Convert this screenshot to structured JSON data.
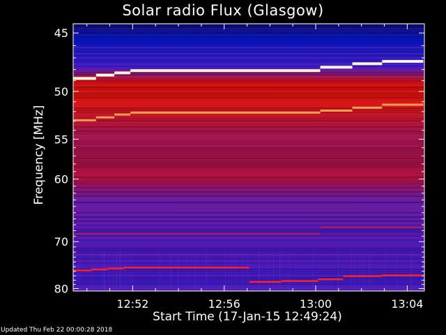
{
  "updated_text": "Updated Thu Feb 22 00:00:28 2018",
  "chart_data": {
    "type": "heatmap",
    "title": "Solar radio Flux (Glasgow)",
    "xlabel": "Start Time (17-Jan-15 12:49:24)",
    "ylabel": "Frequency [MHz]",
    "x_axis": {
      "unit": "time (HH:MM)",
      "start": "12:49:24",
      "end": "13:04:40",
      "tick_labels": [
        "12:52",
        "12:56",
        "13:00",
        "13:04"
      ],
      "tick_minutes_after_1249": [
        3,
        7,
        11,
        15
      ]
    },
    "y_axis": {
      "unit": "MHz",
      "range": [
        45,
        80
      ],
      "inverted": true,
      "tick_labels": [
        "45",
        "50",
        "55",
        "60",
        "70",
        "80"
      ],
      "tick_values": [
        45,
        50,
        55,
        60,
        70,
        80
      ],
      "scale": "reciprocal"
    },
    "features": [
      {
        "kind": "bright-band",
        "color": "#fff8d0",
        "segments": [
          {
            "t0": 0.0,
            "t1": 1.0,
            "f": 48.8
          },
          {
            "t0": 1.0,
            "t1": 1.8,
            "f": 48.5
          },
          {
            "t0": 1.8,
            "t1": 2.5,
            "f": 48.3
          },
          {
            "t0": 2.5,
            "t1": 10.8,
            "f": 48.1
          },
          {
            "t0": 10.8,
            "t1": 12.2,
            "f": 47.8
          },
          {
            "t0": 12.2,
            "t1": 13.5,
            "f": 47.5
          },
          {
            "t0": 13.5,
            "t1": 15.3,
            "f": 47.3
          }
        ]
      },
      {
        "kind": "orange-band",
        "color": "#ffa050",
        "segments": [
          {
            "t0": 0.0,
            "t1": 1.0,
            "f": 52.9
          },
          {
            "t0": 1.0,
            "t1": 1.8,
            "f": 52.6
          },
          {
            "t0": 1.8,
            "t1": 2.5,
            "f": 52.3
          },
          {
            "t0": 2.5,
            "t1": 10.8,
            "f": 52.1
          },
          {
            "t0": 10.8,
            "t1": 12.2,
            "f": 51.9
          },
          {
            "t0": 12.2,
            "t1": 13.5,
            "f": 51.6
          },
          {
            "t0": 13.5,
            "t1": 15.3,
            "f": 51.3
          }
        ]
      },
      {
        "kind": "red-line",
        "color": "#ff2020",
        "segments": [
          {
            "t0": 0.0,
            "t1": 0.8,
            "f": 75.8
          },
          {
            "t0": 0.8,
            "t1": 1.5,
            "f": 75.6
          },
          {
            "t0": 1.5,
            "t1": 2.2,
            "f": 75.4
          },
          {
            "t0": 2.2,
            "t1": 7.7,
            "f": 75.2
          },
          {
            "t0": 7.7,
            "t1": 9.1,
            "f": 78.4
          },
          {
            "t0": 9.1,
            "t1": 10.7,
            "f": 78.2
          },
          {
            "t0": 10.7,
            "t1": 11.8,
            "f": 77.8
          },
          {
            "t0": 11.8,
            "t1": 13.5,
            "f": 77.1
          },
          {
            "t0": 13.5,
            "t1": 15.3,
            "f": 76.9
          }
        ]
      },
      {
        "kind": "faint-line",
        "color": "#c02040",
        "segments": [
          {
            "t0": 0.0,
            "t1": 10.8,
            "f": 68.6
          },
          {
            "t0": 10.8,
            "t1": 15.3,
            "f": 67.4
          }
        ]
      }
    ]
  }
}
